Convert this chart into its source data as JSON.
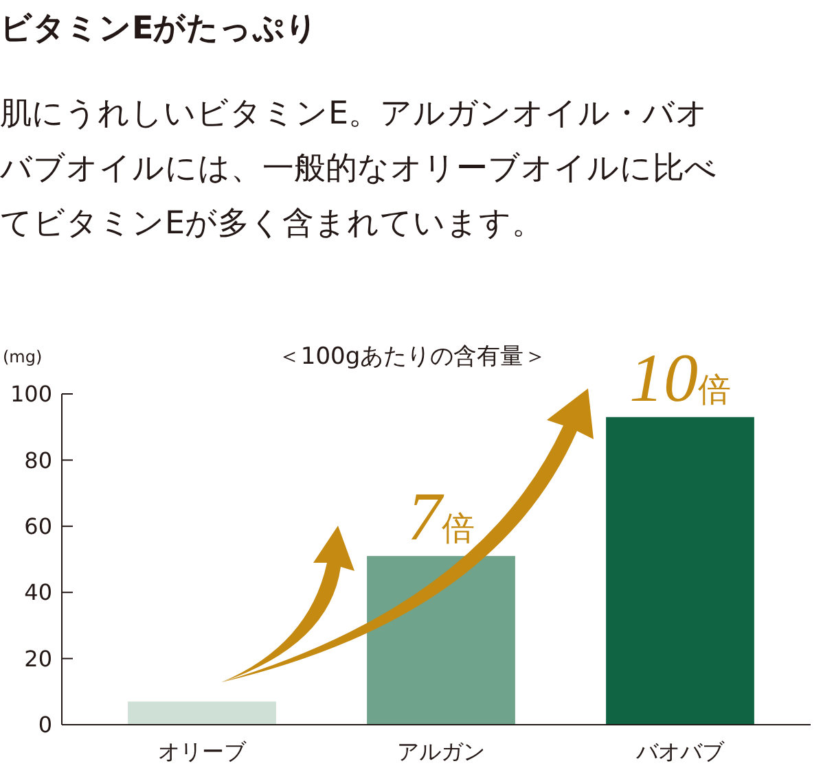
{
  "chart_data": {
    "type": "bar",
    "title": "ビタミンEがたっぷり",
    "subtitle": "肌にうれしいビタミンE。アルガンオイル・バオバブオイルには、一般的なオリーブオイルに比べてビタミンEが多く含まれています。",
    "ylabel": "(mg)",
    "annotations": [
      "＜100gあたりの含有量＞",
      {
        "text": "7倍",
        "x": "アルガン",
        "y": 51
      },
      {
        "text": "10倍",
        "x": "バオバブ",
        "y": 93
      }
    ],
    "categories": [
      "オリーブ",
      "アルガン",
      "バオバブ"
    ],
    "values": [
      7,
      51,
      93
    ],
    "colors": [
      "#cfe0d6",
      "#6fa38b",
      "#106443"
    ],
    "ylim": [
      0,
      100
    ],
    "yticks": [
      0,
      20,
      40,
      60,
      80,
      100
    ],
    "grid": false
  }
}
